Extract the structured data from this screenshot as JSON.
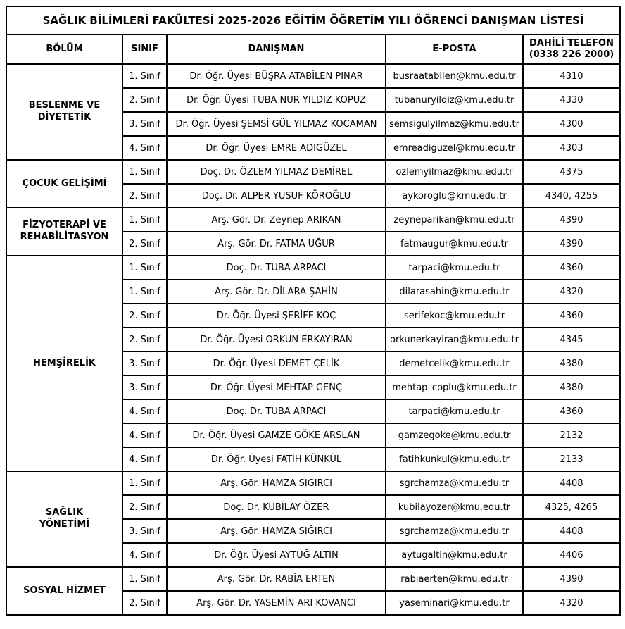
{
  "document": {
    "title": "SAĞLIK BİLİMLERİ FAKÜLTESİ 2025-2026 EĞİTİM ÖĞRETİM YILI ÖĞRENCİ DANIŞMAN LİSTESİ",
    "headers": {
      "bolum": "BÖLÜM",
      "sinif": "SINIF",
      "danisman": "DANIŞMAN",
      "eposta": "E-POSTA",
      "telefon": "DAHİLİ TELEFON\n(0338 226 2000)"
    },
    "colors": {
      "border": "#000000",
      "text": "#000000",
      "background": "#ffffff"
    },
    "sections": [
      {
        "department": "BESLENME VE\nDİYETETİK",
        "rows": [
          {
            "sinif": "1. Sınıf",
            "danisman": "Dr. Öğr. Üyesi BÜŞRA ATABİLEN PINAR",
            "eposta": "busraatabilen@kmu.edu.tr",
            "telefon": "4310"
          },
          {
            "sinif": "2. Sınıf",
            "danisman": "Dr. Öğr. Üyesi TUBA NUR YILDIZ KOPUZ",
            "eposta": "tubanuryildiz@kmu.edu.tr",
            "telefon": "4330"
          },
          {
            "sinif": "3. Sınıf",
            "danisman": "Dr. Öğr. Üyesi ŞEMSİ GÜL YILMAZ KOCAMAN",
            "eposta": "semsigulyilmaz@kmu.edu.tr",
            "telefon": "4300"
          },
          {
            "sinif": "4. Sınıf",
            "danisman": "Dr. Öğr. Üyesi EMRE ADIGÜZEL",
            "eposta": "emreadiguzel@kmu.edu.tr",
            "telefon": "4303"
          }
        ]
      },
      {
        "department": "ÇOCUK GELİŞİMİ",
        "rows": [
          {
            "sinif": "1. Sınıf",
            "danisman": "Doç. Dr. ÖZLEM YILMAZ DEMİREL",
            "eposta": "ozlemyilmaz@kmu.edu.tr",
            "telefon": "4375"
          },
          {
            "sinif": "2. Sınıf",
            "danisman": "Doç. Dr. ALPER YUSUF KÖROĞLU",
            "eposta": "aykoroglu@kmu.edu.tr",
            "telefon": "4340, 4255"
          }
        ]
      },
      {
        "department": "FİZYOTERAPİ VE\nREHABİLİTASYON",
        "rows": [
          {
            "sinif": "1. Sınıf",
            "danisman": "Arş. Gör. Dr. Zeynep ARIKAN",
            "eposta": "zeyneparikan@kmu.edu.tr",
            "telefon": "4390"
          },
          {
            "sinif": "2. Sınıf",
            "danisman": "Arş. Gör. Dr. FATMA UĞUR",
            "eposta": "fatmaugur@kmu.edu.tr",
            "telefon": "4390"
          }
        ]
      },
      {
        "department": "HEMŞİRELİK",
        "rows": [
          {
            "sinif": "1. Sınıf",
            "danisman": "Doç. Dr. TUBA ARPACI",
            "eposta": "tarpaci@kmu.edu.tr",
            "telefon": "4360"
          },
          {
            "sinif": "1. Sınıf",
            "danisman": "Arş. Gör. Dr. DİLARA ŞAHİN",
            "eposta": "dilarasahin@kmu.edu.tr",
            "telefon": "4320"
          },
          {
            "sinif": "2. Sınıf",
            "danisman": "Dr. Öğr. Üyesi ŞERİFE KOÇ",
            "eposta": "serifekoc@kmu.edu.tr",
            "telefon": "4360"
          },
          {
            "sinif": "2. Sınıf",
            "danisman": "Dr. Öğr. Üyesi ORKUN ERKAYIRAN",
            "eposta": "orkunerkayiran@kmu.edu.tr",
            "telefon": "4345"
          },
          {
            "sinif": "3. Sınıf",
            "danisman": "Dr. Öğr. Üyesi DEMET ÇELİK",
            "eposta": "demetcelik@kmu.edu.tr",
            "telefon": "4380"
          },
          {
            "sinif": "3. Sınıf",
            "danisman": "Dr. Öğr. Üyesi MEHTAP GENÇ",
            "eposta": "mehtap_coplu@kmu.edu.tr",
            "telefon": "4380"
          },
          {
            "sinif": "4. Sınıf",
            "danisman": "Doç. Dr. TUBA ARPACI",
            "eposta": "tarpaci@kmu.edu.tr",
            "telefon": "4360"
          },
          {
            "sinif": "4. Sınıf",
            "danisman": "Dr. Öğr. Üyesi GAMZE GÖKE ARSLAN",
            "eposta": "gamzegoke@kmu.edu.tr",
            "telefon": "2132"
          },
          {
            "sinif": "4. Sınıf",
            "danisman": "Dr. Öğr. Üyesi FATİH KÜNKÜL",
            "eposta": "fatihkunkul@kmu.edu.tr",
            "telefon": "2133"
          }
        ]
      },
      {
        "department": "SAĞLIK\nYÖNETİMİ",
        "rows": [
          {
            "sinif": "1. Sınıf",
            "danisman": "Arş. Gör. HAMZA SIĞIRCI",
            "eposta": "sgrchamza@kmu.edu.tr",
            "telefon": "4408"
          },
          {
            "sinif": "2. Sınıf",
            "danisman": "Doç. Dr. KUBİLAY ÖZER",
            "eposta": "kubilayozer@kmu.edu.tr",
            "telefon": "4325, 4265"
          },
          {
            "sinif": "3. Sınıf",
            "danisman": "Arş. Gör. HAMZA SIĞIRCI",
            "eposta": "sgrchamza@kmu.edu.tr",
            "telefon": "4408"
          },
          {
            "sinif": "4. Sınıf",
            "danisman": "Dr. Öğr. Üyesi AYTUĞ ALTIN",
            "eposta": "aytugaltin@kmu.edu.tr",
            "telefon": "4406"
          }
        ]
      },
      {
        "department": "SOSYAL HİZMET",
        "rows": [
          {
            "sinif": "1. Sınıf",
            "danisman": "Arş. Gör. Dr. RABİA ERTEN",
            "eposta": "rabiaerten@kmu.edu.tr",
            "telefon": "4390"
          },
          {
            "sinif": "2. Sınıf",
            "danisman": "Arş. Gör. Dr. YASEMİN ARI KOVANCI",
            "eposta": "yaseminari@kmu.edu.tr",
            "telefon": "4320"
          }
        ]
      }
    ]
  }
}
